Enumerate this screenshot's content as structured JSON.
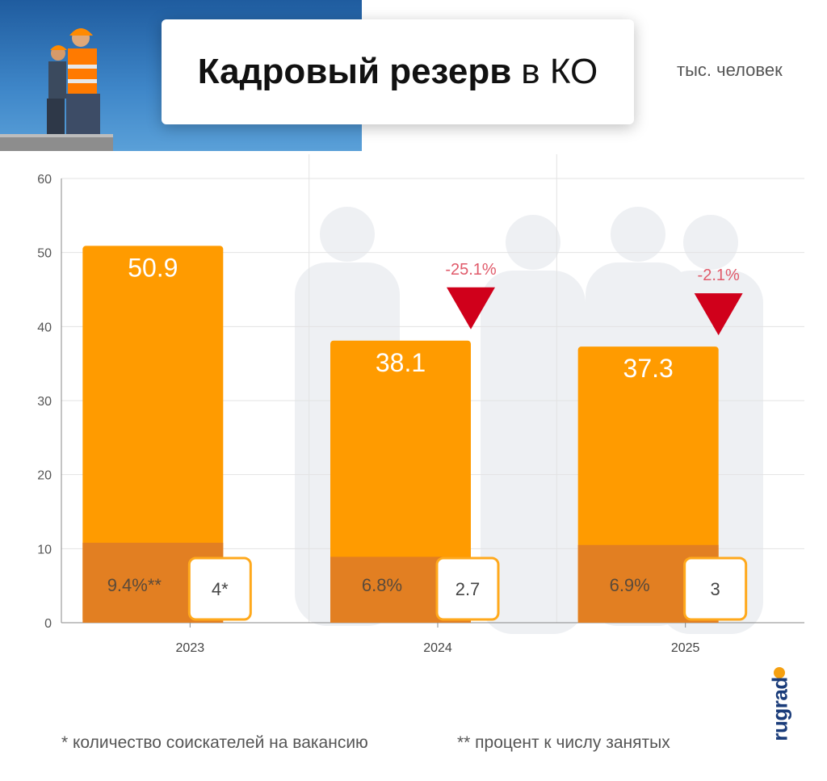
{
  "header": {
    "title_bold": "Кадровый резерв",
    "title_rest": "в КО",
    "unit": "тыс. человек"
  },
  "footnotes": {
    "first": "* количество соискателей на вакансию",
    "second": "** процент к числу занятых"
  },
  "logo": {
    "text": "rugrad"
  },
  "colors": {
    "bar": "#ff9b00",
    "bar_bottom": "#e27f22",
    "box_border": "#ffa91c",
    "down_arrow": "#d0001b",
    "change_text": "#e05a6a",
    "grid": "#e3e3e3"
  },
  "chart_data": {
    "type": "bar",
    "title": "Кадровый резерв в КО",
    "ylabel": "тыс. человек",
    "categories": [
      "2023",
      "2024",
      "2025"
    ],
    "values": [
      50.9,
      38.1,
      37.3
    ],
    "value_labels": [
      "50.9",
      "38.1",
      "37.3"
    ],
    "ylim": [
      0,
      60
    ],
    "yticks": [
      0,
      10,
      20,
      30,
      40,
      50,
      60
    ],
    "grid": true,
    "change_labels": [
      "",
      "-25.1%",
      "-2.1%"
    ],
    "bottom_segment": {
      "values": [
        10.8,
        8.9,
        10.5
      ],
      "labels": [
        "9.4%**",
        "6.8%",
        "6.9%"
      ]
    },
    "applicants_per_vacancy": [
      "4*",
      "2.7",
      "3"
    ]
  }
}
